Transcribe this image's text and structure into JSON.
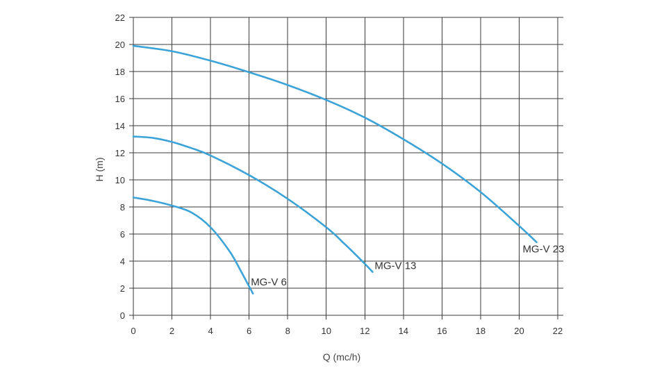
{
  "chart_data": {
    "type": "line",
    "xlabel": "Q (mc/h)",
    "ylabel": "H (m)",
    "xlim": [
      0,
      22
    ],
    "ylim": [
      0,
      22
    ],
    "x_ticks": [
      0,
      2,
      4,
      6,
      8,
      10,
      12,
      14,
      16,
      18,
      20,
      22
    ],
    "y_ticks": [
      0,
      2,
      4,
      6,
      8,
      10,
      12,
      14,
      16,
      18,
      20,
      22
    ],
    "grid": true,
    "line_color": "#3ba3d8",
    "series": [
      {
        "name": "MG-V 6",
        "x": [
          0,
          1,
          2,
          3,
          4,
          5,
          5.6,
          6.2
        ],
        "y": [
          8.7,
          8.45,
          8.1,
          7.6,
          6.5,
          4.7,
          3.2,
          1.6
        ]
      },
      {
        "name": "MG-V 13",
        "x": [
          0,
          1,
          2,
          3,
          4,
          6,
          8,
          10,
          11,
          12,
          12.4
        ],
        "y": [
          13.2,
          13.1,
          12.8,
          12.35,
          11.8,
          10.35,
          8.6,
          6.5,
          5.2,
          3.8,
          3.2
        ]
      },
      {
        "name": "MG-V 23",
        "x": [
          0,
          2,
          4,
          6,
          8,
          10,
          12,
          14,
          16,
          18,
          20,
          20.9
        ],
        "y": [
          19.9,
          19.5,
          18.8,
          17.95,
          17.0,
          15.9,
          14.6,
          13.0,
          11.2,
          9.1,
          6.6,
          5.4
        ]
      }
    ]
  }
}
